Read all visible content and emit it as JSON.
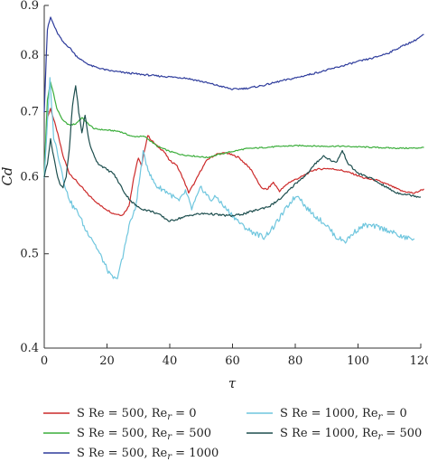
{
  "chart_data": {
    "type": "line",
    "xlabel": "τ",
    "ylabel": "Cd",
    "xlim": [
      0,
      120
    ],
    "ylim": [
      0.4,
      0.9
    ],
    "y_scale": "log",
    "grid": false,
    "legend_placement": "below plot, two columns",
    "x_ticks": [
      "0",
      "20",
      "40",
      "60",
      "80",
      "100",
      "120"
    ],
    "y_ticks": [
      "0.4",
      "0.5",
      "0.6",
      "0.7",
      "0.8",
      "0.9"
    ],
    "series": [
      {
        "name": "S Re = 500, Re_r = 0",
        "legend_base": "S Re = 500, Re",
        "legend_sub": "r",
        "legend_tail": " = 0",
        "color": "#cc2a2a",
        "x": [
          0,
          1,
          2,
          4,
          6,
          8,
          10,
          14,
          18,
          22,
          25,
          27,
          28.5,
          30,
          31,
          32,
          33,
          34,
          36,
          38,
          40,
          42,
          44,
          46,
          48,
          50,
          52,
          55,
          58,
          62,
          66,
          69,
          71,
          73,
          75,
          78,
          82,
          86,
          90,
          94,
          98,
          102,
          106,
          110,
          114,
          118,
          121
        ],
        "y": [
          0.6,
          0.69,
          0.705,
          0.67,
          0.63,
          0.605,
          0.595,
          0.575,
          0.56,
          0.55,
          0.548,
          0.56,
          0.598,
          0.628,
          0.615,
          0.64,
          0.662,
          0.655,
          0.645,
          0.638,
          0.623,
          0.618,
          0.6,
          0.578,
          0.592,
          0.61,
          0.625,
          0.633,
          0.635,
          0.628,
          0.61,
          0.585,
          0.582,
          0.592,
          0.58,
          0.592,
          0.6,
          0.61,
          0.612,
          0.61,
          0.605,
          0.598,
          0.595,
          0.588,
          0.58,
          0.577,
          0.583
        ]
      },
      {
        "name": "S Re = 500, Re_r = 500",
        "legend_base": "S Re = 500, Re",
        "legend_sub": "r",
        "legend_tail": " = 500",
        "color": "#3cae3c",
        "x": [
          0,
          1,
          2,
          3,
          4,
          6,
          8,
          10,
          12,
          14,
          16,
          20,
          24,
          28,
          32,
          36,
          40,
          44,
          48,
          52,
          56,
          60,
          64,
          70,
          76,
          82,
          88,
          94,
          100,
          106,
          112,
          118,
          121
        ],
        "y": [
          0.6,
          0.72,
          0.75,
          0.73,
          0.705,
          0.685,
          0.678,
          0.68,
          0.69,
          0.68,
          0.672,
          0.67,
          0.668,
          0.66,
          0.66,
          0.645,
          0.637,
          0.632,
          0.63,
          0.628,
          0.633,
          0.637,
          0.641,
          0.643,
          0.645,
          0.646,
          0.645,
          0.645,
          0.644,
          0.643,
          0.642,
          0.642,
          0.643
        ]
      },
      {
        "name": "S Re = 500, Re_r = 1000",
        "legend_base": "S Re = 500, Re",
        "legend_sub": "r",
        "legend_tail": " = 1000",
        "color": "#2e3c9c",
        "x": [
          0,
          1,
          2,
          3,
          4,
          6,
          8,
          10,
          12,
          15,
          20,
          25,
          30,
          35,
          40,
          45,
          50,
          55,
          60,
          65,
          70,
          75,
          80,
          85,
          90,
          95,
          100,
          105,
          110,
          115,
          118,
          121
        ],
        "y": [
          0.7,
          0.85,
          0.875,
          0.86,
          0.845,
          0.825,
          0.815,
          0.8,
          0.79,
          0.78,
          0.772,
          0.768,
          0.765,
          0.762,
          0.76,
          0.758,
          0.752,
          0.745,
          0.738,
          0.74,
          0.745,
          0.752,
          0.758,
          0.765,
          0.772,
          0.78,
          0.788,
          0.795,
          0.805,
          0.82,
          0.828,
          0.84
        ]
      },
      {
        "name": "S Re = 1000, Re_r = 0",
        "legend_base": "S Re = 1000, Re",
        "legend_sub": "r",
        "legend_tail": " = 0",
        "color": "#6fc6de",
        "x": [
          0,
          1,
          1.8,
          3,
          5,
          7,
          9,
          11,
          13,
          15,
          17,
          19,
          21,
          23,
          25,
          27,
          29,
          30.5,
          31.5,
          32.5,
          34,
          35,
          36,
          38,
          40,
          43,
          45,
          47,
          50,
          53,
          55,
          57,
          60,
          63,
          66,
          70,
          73,
          76,
          79,
          81,
          83,
          86,
          90,
          93,
          96,
          99,
          102,
          106,
          110,
          114,
          118
        ],
        "y": [
          0.6,
          0.68,
          0.755,
          0.66,
          0.62,
          0.58,
          0.56,
          0.55,
          0.53,
          0.52,
          0.505,
          0.49,
          0.475,
          0.47,
          0.495,
          0.535,
          0.555,
          0.6,
          0.635,
          0.62,
          0.6,
          0.592,
          0.586,
          0.582,
          0.576,
          0.566,
          0.58,
          0.556,
          0.585,
          0.568,
          0.572,
          0.56,
          0.548,
          0.535,
          0.527,
          0.52,
          0.532,
          0.55,
          0.568,
          0.575,
          0.56,
          0.548,
          0.535,
          0.52,
          0.515,
          0.527,
          0.535,
          0.533,
          0.528,
          0.52,
          0.518
        ]
      },
      {
        "name": "S Re = 1000, Re_r = 500",
        "legend_base": "S Re = 1000, Re",
        "legend_sub": "r",
        "legend_tail": " = 500",
        "color": "#1d4e4e",
        "x": [
          0,
          1,
          2,
          3,
          4,
          5,
          6,
          7,
          8,
          9,
          10,
          11,
          12,
          13,
          14,
          15,
          17,
          20,
          22,
          24,
          26,
          28,
          30,
          32,
          34,
          36,
          40,
          44,
          48,
          52,
          56,
          60,
          64,
          68,
          72,
          76,
          80,
          84,
          87,
          89,
          91,
          93,
          95,
          97,
          100,
          104,
          108,
          112,
          116,
          120
        ],
        "y": [
          0.6,
          0.62,
          0.655,
          0.63,
          0.605,
          0.59,
          0.585,
          0.6,
          0.64,
          0.71,
          0.745,
          0.7,
          0.665,
          0.695,
          0.66,
          0.64,
          0.62,
          0.61,
          0.605,
          0.59,
          0.575,
          0.565,
          0.558,
          0.555,
          0.553,
          0.55,
          0.54,
          0.545,
          0.549,
          0.55,
          0.548,
          0.547,
          0.55,
          0.555,
          0.56,
          0.572,
          0.59,
          0.605,
          0.622,
          0.63,
          0.625,
          0.62,
          0.638,
          0.618,
          0.605,
          0.598,
          0.588,
          0.578,
          0.575,
          0.572
        ]
      }
    ]
  }
}
